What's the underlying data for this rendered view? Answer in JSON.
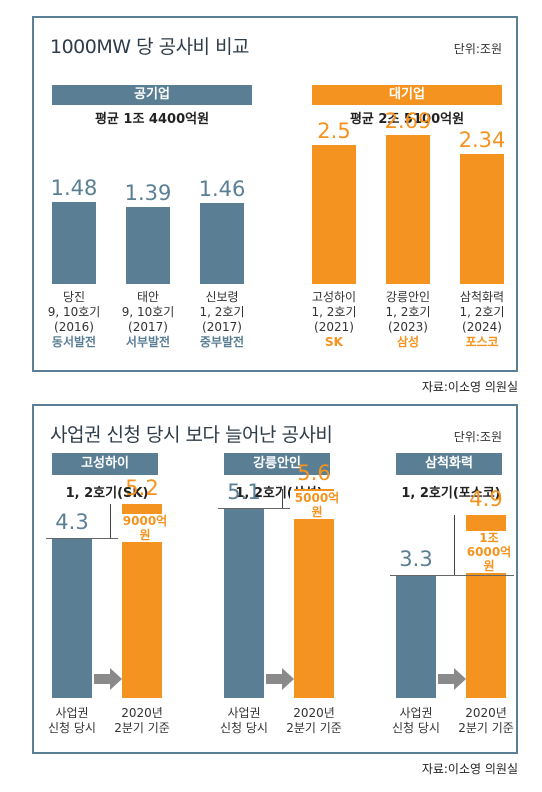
{
  "panel1": {
    "title": "1000MW 당 공사비 비교",
    "unit": "단위:조원",
    "public": {
      "chip": "공기업",
      "avg": "평균 1조 4400억원"
    },
    "private": {
      "chip": "대기업",
      "avg": "평균 2조 5100억원"
    },
    "source": "자료:이소영 의원실"
  },
  "panel2": {
    "title": "사업권 신청 당시 보다 늘어난 공사비",
    "unit": "단위:조원",
    "groups": [
      {
        "name": "고성하이",
        "sub": "1, 2호기(SK)",
        "diff": "9000억원"
      },
      {
        "name": "강릉안인",
        "sub": "1, 2호기(삼성)",
        "diff": "5000억원"
      },
      {
        "name": "삼척화력",
        "sub": "1, 2호기(포스코)",
        "diff": "1조\n6000억원"
      }
    ],
    "cat_left": "사업권\n신청 당시",
    "cat_right": "2020년\n2분기 기준",
    "source": "자료:이소영 의원실"
  },
  "colors": {
    "public": "#5a7f95",
    "private": "#f4931f"
  },
  "chart_data": [
    {
      "type": "bar",
      "title": "1000MW 당 공사비 비교",
      "unit": "조원",
      "categories": [
        {
          "plant": "당진",
          "units": "9, 10호기",
          "year": "(2016)",
          "company": "동서발전",
          "group": "공기업"
        },
        {
          "plant": "태안",
          "units": "9, 10호기",
          "year": "(2017)",
          "company": "서부발전",
          "group": "공기업"
        },
        {
          "plant": "신보령",
          "units": "1, 2호기",
          "year": "(2017)",
          "company": "중부발전",
          "group": "공기업"
        },
        {
          "plant": "고성하이",
          "units": "1, 2호기",
          "year": "(2021)",
          "company": "SK",
          "group": "대기업"
        },
        {
          "plant": "강릉안인",
          "units": "1, 2호기",
          "year": "(2023)",
          "company": "삼성",
          "group": "대기업"
        },
        {
          "plant": "삼척화력",
          "units": "1, 2호기",
          "year": "(2024)",
          "company": "포스코",
          "group": "대기업"
        }
      ],
      "values": [
        1.48,
        1.39,
        1.46,
        2.5,
        2.69,
        2.34
      ],
      "value_labels": [
        "1.48",
        "1.39",
        "1.46",
        "2.5",
        "2.69",
        "2.34"
      ]
    },
    {
      "type": "bar",
      "title": "사업권 신청 당시 보다 늘어난 공사비",
      "unit": "조원",
      "categories": [
        "고성하이",
        "강릉안인",
        "삼척화력"
      ],
      "series": [
        {
          "values": [
            4.3,
            5.1,
            3.3
          ]
        },
        {
          "values": [
            5.2,
            5.6,
            4.9
          ]
        }
      ],
      "value_labels_left": [
        "4.3",
        "5.1",
        "3.3"
      ],
      "value_labels_right": [
        "5.2",
        "5.6",
        "4.9"
      ]
    }
  ]
}
